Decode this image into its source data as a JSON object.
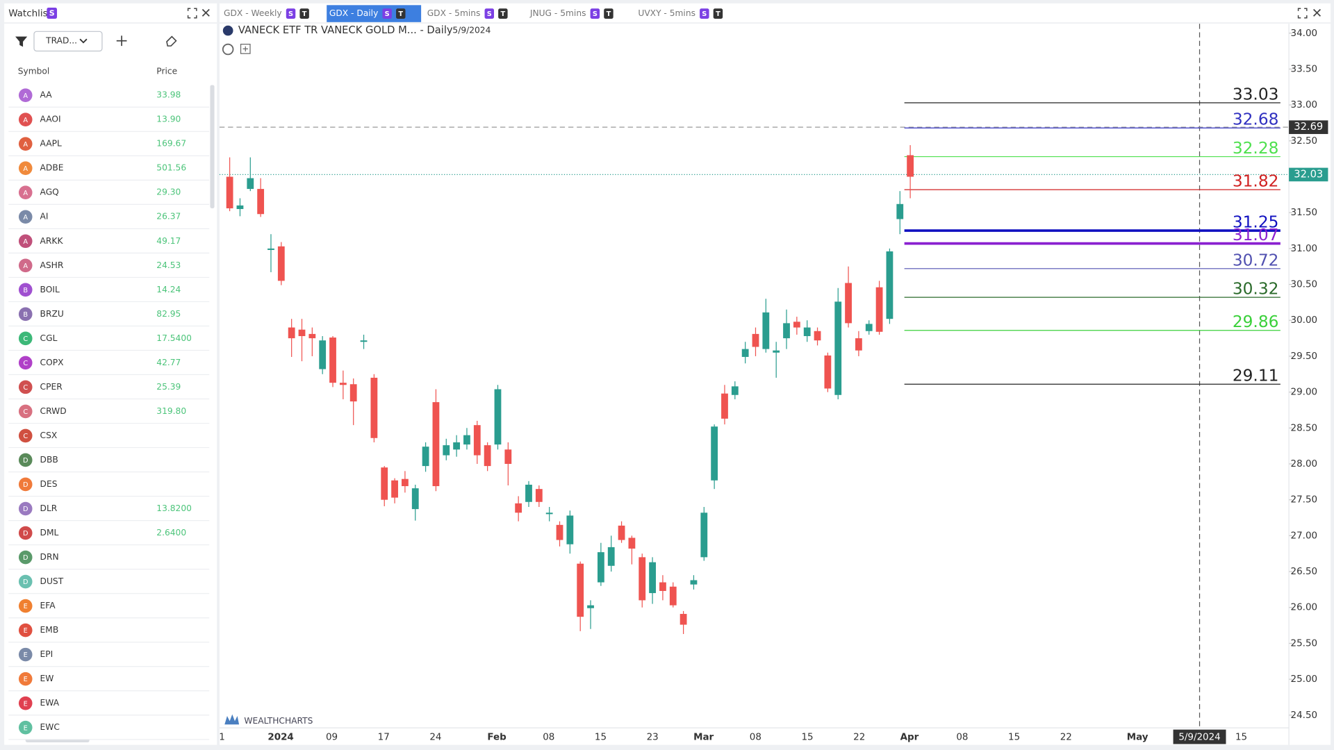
{
  "watchlist": {
    "title": "Watchlist",
    "badge": "S",
    "filter": "TRAD...",
    "columns": [
      "Symbol",
      "Price"
    ],
    "rows": [
      {
        "letter": "A",
        "symbol": "AA",
        "price": "33.98",
        "color": "#b06ad6"
      },
      {
        "letter": "A",
        "symbol": "AAOI",
        "price": "13.90",
        "color": "#e05050"
      },
      {
        "letter": "A",
        "symbol": "AAPL",
        "price": "169.67",
        "color": "#e06040"
      },
      {
        "letter": "A",
        "symbol": "ADBE",
        "price": "501.56",
        "color": "#f08a3c"
      },
      {
        "letter": "A",
        "symbol": "AGQ",
        "price": "29.30",
        "color": "#d87090"
      },
      {
        "letter": "A",
        "symbol": "AI",
        "price": "26.37",
        "color": "#7a8aa8"
      },
      {
        "letter": "A",
        "symbol": "ARKK",
        "price": "49.17",
        "color": "#c0507a"
      },
      {
        "letter": "A",
        "symbol": "ASHR",
        "price": "24.53",
        "color": "#d06a8a"
      },
      {
        "letter": "B",
        "symbol": "BOIL",
        "price": "14.24",
        "color": "#a050d0"
      },
      {
        "letter": "B",
        "symbol": "BRZU",
        "price": "82.95",
        "color": "#8a70b0"
      },
      {
        "letter": "C",
        "symbol": "CGL",
        "price": "17.5400",
        "color": "#3cb878"
      },
      {
        "letter": "C",
        "symbol": "COPX",
        "price": "42.77",
        "color": "#b040c8"
      },
      {
        "letter": "C",
        "symbol": "CPER",
        "price": "25.39",
        "color": "#d05050"
      },
      {
        "letter": "C",
        "symbol": "CRWD",
        "price": "319.80",
        "color": "#d87080"
      },
      {
        "letter": "C",
        "symbol": "CSX",
        "color": "#d05040"
      },
      {
        "letter": "D",
        "symbol": "DBB",
        "color": "#5a8a5a"
      },
      {
        "letter": "D",
        "symbol": "DES",
        "color": "#f07a3a"
      },
      {
        "letter": "D",
        "symbol": "DLR",
        "price": "13.8200",
        "color": "#9a7ac0"
      },
      {
        "letter": "D",
        "symbol": "DML",
        "price": "2.6400",
        "color": "#d04a4a"
      },
      {
        "letter": "D",
        "symbol": "DRN",
        "color": "#5a9a6a"
      },
      {
        "letter": "D",
        "symbol": "DUST",
        "color": "#6ac0b0"
      },
      {
        "letter": "E",
        "symbol": "EFA",
        "color": "#f08030"
      },
      {
        "letter": "E",
        "symbol": "EMB",
        "color": "#e05040"
      },
      {
        "letter": "E",
        "symbol": "EPI",
        "color": "#7a8aa8"
      },
      {
        "letter": "E",
        "symbol": "EW",
        "color": "#f07a3a"
      },
      {
        "letter": "E",
        "symbol": "EWA",
        "color": "#e04050"
      },
      {
        "letter": "E",
        "symbol": "EWC",
        "color": "#60c0a0"
      }
    ]
  },
  "tabs": [
    {
      "label": "GDX - Weekly",
      "badges": [
        "S",
        "T"
      ],
      "active": false
    },
    {
      "label": "GDX - Daily",
      "badges": [
        "S",
        "T"
      ],
      "active": true
    },
    {
      "label": "GDX - 5mins",
      "badges": [
        "S",
        "T"
      ],
      "active": false
    },
    {
      "label": "JNUG - 5mins",
      "badges": [
        "S",
        "T"
      ],
      "active": false
    },
    {
      "label": "UVXY - 5mins",
      "badges": [
        "S",
        "T"
      ],
      "active": false
    }
  ],
  "chart": {
    "type": "candlestick",
    "title": "VANECK ETF TR VANECK GOLD M... - Daily",
    "date": "5/9/2024",
    "watermark": "WEALTHCHARTS",
    "up_color": "#2a9d8f",
    "down_color": "#ef5350",
    "ylim": [
      24.5,
      34
    ],
    "yticks": [
      {
        "value": 34,
        "label": "34.00"
      },
      {
        "value": 33.5,
        "label": "33.50"
      },
      {
        "value": 33,
        "label": "33.00"
      },
      {
        "value": 32.5,
        "label": "32.50"
      },
      {
        "value": 32,
        "label": "32.00"
      },
      {
        "value": 31.5,
        "label": "31.50"
      },
      {
        "value": 31,
        "label": "31.00"
      },
      {
        "value": 30.5,
        "label": "30.50"
      },
      {
        "value": 30,
        "label": "30.00"
      },
      {
        "value": 29.5,
        "label": "29.50"
      },
      {
        "value": 29,
        "label": "29.00"
      },
      {
        "value": 28.5,
        "label": "28.50"
      },
      {
        "value": 28,
        "label": "28.00"
      },
      {
        "value": 27.5,
        "label": "27.50"
      },
      {
        "value": 27,
        "label": "27.00"
      },
      {
        "value": 26.5,
        "label": "26.50"
      },
      {
        "value": 26,
        "label": "26.00"
      },
      {
        "value": 25.5,
        "label": "25.50"
      },
      {
        "value": 25,
        "label": "25.00"
      },
      {
        "value": 24.5,
        "label": "24.50"
      }
    ],
    "xticks": [
      "1",
      "2024",
      "09",
      "17",
      "24",
      "Feb",
      "08",
      "15",
      "23",
      "Mar",
      "08",
      "15",
      "22",
      "Apr",
      "08",
      "15",
      "22",
      "May",
      "15"
    ],
    "candles": [
      {
        "o": 32.0,
        "h": 32.27,
        "l": 31.52,
        "c": 31.56
      },
      {
        "o": 31.55,
        "h": 31.7,
        "l": 31.45,
        "c": 31.6
      },
      {
        "o": 31.83,
        "h": 32.27,
        "l": 31.8,
        "c": 31.98
      },
      {
        "o": 31.83,
        "h": 31.98,
        "l": 31.44,
        "c": 31.48
      },
      {
        "o": 30.98,
        "h": 31.2,
        "l": 30.67,
        "c": 31.0
      },
      {
        "o": 31.03,
        "h": 31.09,
        "l": 30.49,
        "c": 30.55
      },
      {
        "o": 29.9,
        "h": 30.02,
        "l": 29.49,
        "c": 29.75
      },
      {
        "o": 29.87,
        "h": 30.02,
        "l": 29.43,
        "c": 29.78
      },
      {
        "o": 29.81,
        "h": 29.9,
        "l": 29.5,
        "c": 29.75
      },
      {
        "o": 29.32,
        "h": 29.78,
        "l": 29.25,
        "c": 29.72
      },
      {
        "o": 29.76,
        "h": 29.78,
        "l": 29.07,
        "c": 29.13
      },
      {
        "o": 29.13,
        "h": 29.3,
        "l": 28.9,
        "c": 29.1
      },
      {
        "o": 29.11,
        "h": 29.19,
        "l": 28.54,
        "c": 28.87
      },
      {
        "o": 29.7,
        "h": 29.8,
        "l": 29.6,
        "c": 29.72
      },
      {
        "o": 29.2,
        "h": 29.25,
        "l": 28.3,
        "c": 28.36
      },
      {
        "o": 27.95,
        "h": 27.97,
        "l": 27.41,
        "c": 27.5
      },
      {
        "o": 27.77,
        "h": 27.8,
        "l": 27.45,
        "c": 27.53
      },
      {
        "o": 27.79,
        "h": 27.9,
        "l": 27.6,
        "c": 27.69
      },
      {
        "o": 27.37,
        "h": 27.71,
        "l": 27.21,
        "c": 27.66
      },
      {
        "o": 27.97,
        "h": 28.3,
        "l": 27.89,
        "c": 28.24
      },
      {
        "o": 28.86,
        "h": 29.04,
        "l": 27.62,
        "c": 27.69
      },
      {
        "o": 28.12,
        "h": 28.35,
        "l": 28.05,
        "c": 28.26
      },
      {
        "o": 28.2,
        "h": 28.4,
        "l": 28.1,
        "c": 28.3
      },
      {
        "o": 28.27,
        "h": 28.5,
        "l": 28.2,
        "c": 28.4
      },
      {
        "o": 28.54,
        "h": 28.6,
        "l": 28.0,
        "c": 28.12
      },
      {
        "o": 28.26,
        "h": 28.3,
        "l": 27.9,
        "c": 27.97
      },
      {
        "o": 28.27,
        "h": 29.1,
        "l": 28.2,
        "c": 29.04
      },
      {
        "o": 28.2,
        "h": 28.3,
        "l": 27.7,
        "c": 28.0
      },
      {
        "o": 27.45,
        "h": 27.55,
        "l": 27.2,
        "c": 27.32
      },
      {
        "o": 27.47,
        "h": 27.76,
        "l": 27.4,
        "c": 27.71
      },
      {
        "o": 27.65,
        "h": 27.7,
        "l": 27.4,
        "c": 27.47
      },
      {
        "o": 27.3,
        "h": 27.4,
        "l": 27.2,
        "c": 27.32
      },
      {
        "o": 27.15,
        "h": 27.2,
        "l": 26.85,
        "c": 26.94
      },
      {
        "o": 26.88,
        "h": 27.35,
        "l": 26.75,
        "c": 27.28
      },
      {
        "o": 26.61,
        "h": 26.64,
        "l": 25.67,
        "c": 25.87
      },
      {
        "o": 25.99,
        "h": 26.1,
        "l": 25.7,
        "c": 26.03
      },
      {
        "o": 26.35,
        "h": 26.9,
        "l": 26.3,
        "c": 26.77
      },
      {
        "o": 26.58,
        "h": 27.0,
        "l": 26.5,
        "c": 26.84
      },
      {
        "o": 27.14,
        "h": 27.2,
        "l": 26.9,
        "c": 26.94
      },
      {
        "o": 26.97,
        "h": 27.0,
        "l": 26.6,
        "c": 26.82
      },
      {
        "o": 26.7,
        "h": 26.75,
        "l": 26.0,
        "c": 26.1
      },
      {
        "o": 26.2,
        "h": 26.7,
        "l": 26.05,
        "c": 26.63
      },
      {
        "o": 26.35,
        "h": 26.45,
        "l": 26.1,
        "c": 26.23
      },
      {
        "o": 26.29,
        "h": 26.35,
        "l": 26.0,
        "c": 26.03
      },
      {
        "o": 25.91,
        "h": 25.95,
        "l": 25.63,
        "c": 25.76
      },
      {
        "o": 26.32,
        "h": 26.45,
        "l": 26.25,
        "c": 26.38
      },
      {
        "o": 26.7,
        "h": 27.4,
        "l": 26.65,
        "c": 27.32
      },
      {
        "o": 27.77,
        "h": 28.55,
        "l": 27.65,
        "c": 28.52
      },
      {
        "o": 28.98,
        "h": 29.1,
        "l": 28.55,
        "c": 28.63
      },
      {
        "o": 28.96,
        "h": 29.15,
        "l": 28.9,
        "c": 29.08
      },
      {
        "o": 29.49,
        "h": 29.7,
        "l": 29.4,
        "c": 29.6
      },
      {
        "o": 29.81,
        "h": 29.9,
        "l": 29.5,
        "c": 29.63
      },
      {
        "o": 29.6,
        "h": 30.3,
        "l": 29.55,
        "c": 30.11
      },
      {
        "o": 29.55,
        "h": 29.7,
        "l": 29.2,
        "c": 29.58
      },
      {
        "o": 29.75,
        "h": 30.15,
        "l": 29.6,
        "c": 29.96
      },
      {
        "o": 29.98,
        "h": 30.05,
        "l": 29.8,
        "c": 29.9
      },
      {
        "o": 29.78,
        "h": 30.0,
        "l": 29.7,
        "c": 29.9
      },
      {
        "o": 29.85,
        "h": 29.9,
        "l": 29.65,
        "c": 29.72
      },
      {
        "o": 29.51,
        "h": 29.55,
        "l": 29.0,
        "c": 29.05
      },
      {
        "o": 28.96,
        "h": 30.45,
        "l": 28.9,
        "c": 30.26
      },
      {
        "o": 30.52,
        "h": 30.75,
        "l": 29.9,
        "c": 29.96
      },
      {
        "o": 29.75,
        "h": 29.85,
        "l": 29.5,
        "c": 29.58
      },
      {
        "o": 29.85,
        "h": 30.0,
        "l": 29.8,
        "c": 29.95
      },
      {
        "o": 30.46,
        "h": 30.55,
        "l": 29.8,
        "c": 29.84
      },
      {
        "o": 30.02,
        "h": 31.0,
        "l": 29.95,
        "c": 30.96
      },
      {
        "o": 31.41,
        "h": 31.8,
        "l": 31.2,
        "c": 31.62
      },
      {
        "o": 32.3,
        "h": 32.44,
        "l": 31.7,
        "c": 32.0
      }
    ],
    "levels": [
      {
        "value": 33.03,
        "color": "#222222",
        "thick": false
      },
      {
        "value": 32.68,
        "color": "#3030c0",
        "thick": false
      },
      {
        "value": 32.28,
        "color": "#4ee04e",
        "thick": false
      },
      {
        "value": 31.82,
        "color": "#d02020",
        "thick": false
      },
      {
        "value": 31.25,
        "color": "#1010c0",
        "thick": true
      },
      {
        "value": 31.07,
        "color": "#8a20d0",
        "thick": true
      },
      {
        "value": 30.72,
        "color": "#5050b0",
        "thick": false
      },
      {
        "value": 30.32,
        "color": "#2a6a2a",
        "thick": false
      },
      {
        "value": 29.86,
        "color": "#3ad03a",
        "thick": false
      },
      {
        "value": 29.11,
        "color": "#222222",
        "thick": false
      }
    ],
    "prev_close": {
      "value": 32.69,
      "color": "#333333"
    },
    "last_price": {
      "value": 32.03,
      "color": "#2a9d8f"
    },
    "crosshair_date": "5/9/2024"
  }
}
